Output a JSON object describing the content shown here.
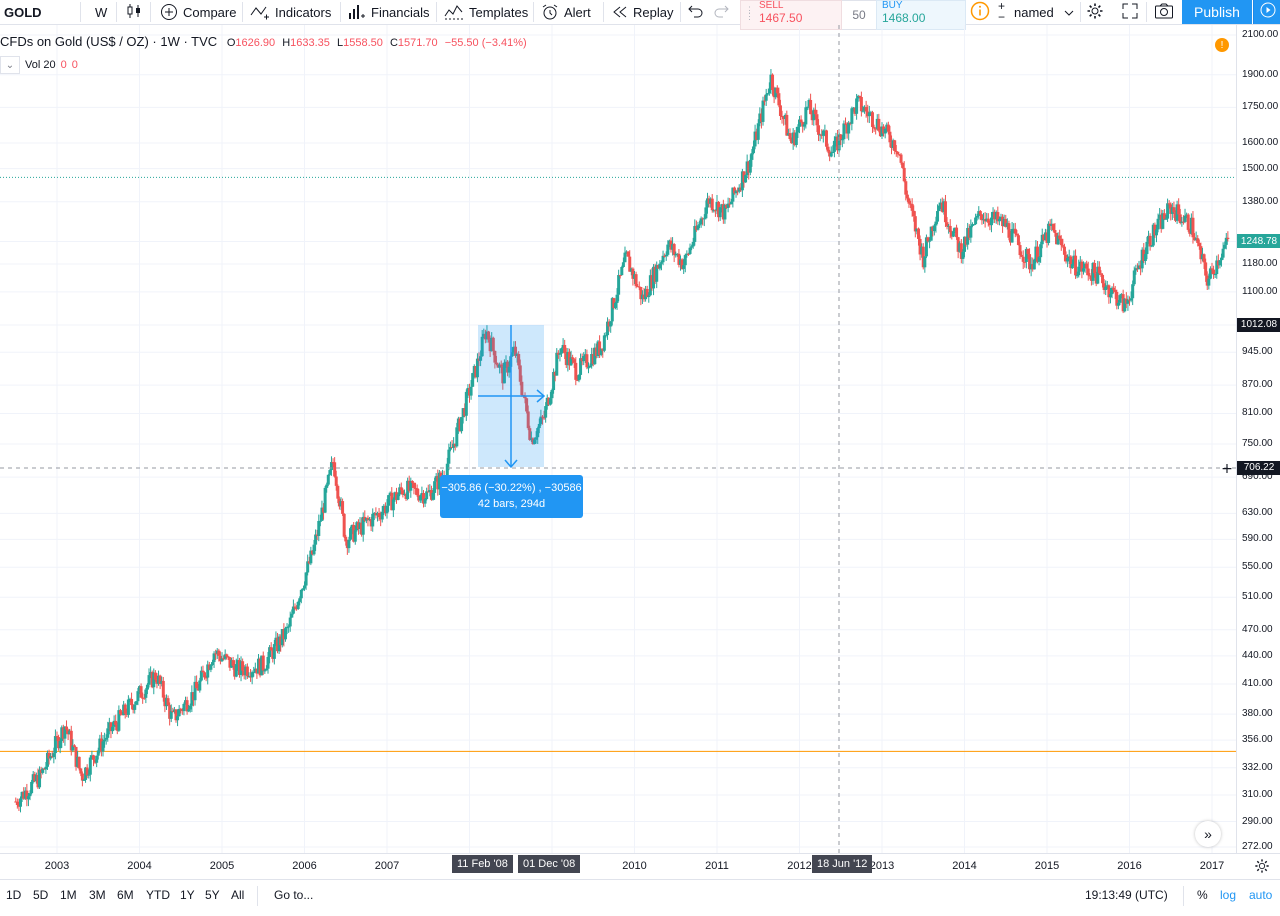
{
  "toolbar": {
    "symbol": "GOLD",
    "interval": "W",
    "compare": "Compare",
    "indicators": "Indicators",
    "financials": "Financials",
    "templates": "Templates",
    "alert": "Alert",
    "replay": "Replay",
    "sell_label": "SELL",
    "sell_price": "1467.50",
    "quantity": "50",
    "buy_label": "BUY",
    "buy_price": "1468.00",
    "layout_name": "named",
    "publish": "Publish"
  },
  "legend": {
    "title": "CFDs on Gold (US$ / OZ) · 1W · TVC",
    "open_label": "O",
    "open": "1626.90",
    "high_label": "H",
    "high": "1633.35",
    "low_label": "L",
    "low": "1558.50",
    "close_label": "C",
    "close": "1571.70",
    "change": "−55.50 (−3.41%)",
    "volume_label": "Vol 20",
    "volume_a": "0",
    "volume_b": "0"
  },
  "measure": {
    "line1": "−305.86 (−30.22%) , −30586",
    "line2": "42 bars, 294d"
  },
  "bottom": {
    "ranges": [
      "1D",
      "5D",
      "1M",
      "3M",
      "6M",
      "YTD",
      "1Y",
      "5Y",
      "All"
    ],
    "goto": "Go to...",
    "clock": "19:13:49 (UTC)",
    "percent": "%",
    "log": "log",
    "auto": "auto"
  },
  "colors": {
    "up": "#26a69a",
    "down": "#ef5350",
    "accent": "#2196f3",
    "last_price": "#26a69a"
  },
  "chart_data": {
    "type": "candlestick",
    "title": "CFDs on Gold (US$ / OZ) · 1W · TVC",
    "scale": "log",
    "ylim": [
      272,
      2100
    ],
    "y_ticks": [
      272,
      290,
      310,
      332,
      356,
      380,
      410,
      440,
      470,
      510,
      550,
      590,
      630,
      690,
      750,
      810,
      870,
      945,
      1012.08,
      1100,
      1180,
      1248.78,
      1380,
      1500,
      1600,
      1750,
      1900,
      2100
    ],
    "y_tick_labels": [
      "272.00",
      "290.00",
      "310.00",
      "332.00",
      "356.00",
      "380.00",
      "410.00",
      "440.00",
      "470.00",
      "510.00",
      "550.00",
      "590.00",
      "630.00",
      "690.00",
      "750.00",
      "810.00",
      "870.00",
      "945.00",
      "1012.08",
      "1100.00",
      "1180.00",
      "1248.78",
      "1380.00",
      "1500.00",
      "1600.00",
      "1750.00",
      "1900.00",
      "2100.00"
    ],
    "x_ticks": [
      "2003",
      "2004",
      "2005",
      "2006",
      "2007",
      "2008",
      "2009",
      "2010",
      "2011",
      "2012",
      "2013",
      "2014",
      "2015",
      "2016",
      "2017"
    ],
    "x_tick_labels": [
      "2003",
      "2004",
      "2005",
      "2006",
      "2007",
      "",
      "",
      "2010",
      "2011",
      "2012",
      "2013",
      "2014",
      "2015",
      "2016",
      "2017"
    ],
    "last_price": 1248.78,
    "marked_price": 1012.08,
    "crosshair_price": 706.22,
    "crosshair_date": "18 Jun '12",
    "measure_start_date": "11 Feb '08",
    "measure_end_date": "01 Dec '08",
    "horizontal_lines": [
      1467.5,
      346
    ],
    "path": [
      [
        "2002.5",
        305
      ],
      [
        "2002.8",
        325
      ],
      [
        "2003.1",
        370
      ],
      [
        "2003.3",
        325
      ],
      [
        "2003.6",
        360
      ],
      [
        "2003.9",
        390
      ],
      [
        "2004.2",
        420
      ],
      [
        "2004.4",
        375
      ],
      [
        "2004.7",
        405
      ],
      [
        "2004.9",
        445
      ],
      [
        "2005.2",
        425
      ],
      [
        "2005.5",
        430
      ],
      [
        "2005.8",
        470
      ],
      [
        "2005.95",
        520
      ],
      [
        "2006.1",
        570
      ],
      [
        "2006.35",
        720
      ],
      [
        "2006.5",
        590
      ],
      [
        "2006.7",
        610
      ],
      [
        "2006.9",
        630
      ],
      [
        "2007.2",
        670
      ],
      [
        "2007.5",
        660
      ],
      [
        "2007.7",
        700
      ],
      [
        "2007.9",
        800
      ],
      [
        "2008.1",
        920
      ],
      [
        "2008.2",
        1000
      ],
      [
        "2008.4",
        890
      ],
      [
        "2008.55",
        950
      ],
      [
        "2008.75",
        760
      ],
      [
        "2008.9",
        800
      ],
      [
        "2009.1",
        960
      ],
      [
        "2009.3",
        900
      ],
      [
        "2009.6",
        960
      ],
      [
        "2009.9",
        1200
      ],
      [
        "2010.1",
        1080
      ],
      [
        "2010.4",
        1240
      ],
      [
        "2010.6",
        1180
      ],
      [
        "2010.9",
        1390
      ],
      [
        "2011.1",
        1340
      ],
      [
        "2011.4",
        1530
      ],
      [
        "2011.65",
        1890
      ],
      [
        "2011.9",
        1600
      ],
      [
        "2012.1",
        1750
      ],
      [
        "2012.4",
        1560
      ],
      [
        "2012.7",
        1770
      ],
      [
        "2012.9",
        1700
      ],
      [
        "2013.2",
        1580
      ],
      [
        "2013.3",
        1400
      ],
      [
        "2013.5",
        1200
      ],
      [
        "2013.7",
        1390
      ],
      [
        "2013.95",
        1220
      ],
      [
        "2014.2",
        1340
      ],
      [
        "2014.5",
        1300
      ],
      [
        "2014.8",
        1180
      ],
      [
        "2015.05",
        1290
      ],
      [
        "2015.3",
        1180
      ],
      [
        "2015.6",
        1150
      ],
      [
        "2015.95",
        1060
      ],
      [
        "2016.2",
        1240
      ],
      [
        "2016.5",
        1360
      ],
      [
        "2016.75",
        1300
      ],
      [
        "2016.95",
        1130
      ],
      [
        "2017.1",
        1210
      ],
      [
        "2017.2",
        1248
      ]
    ]
  }
}
